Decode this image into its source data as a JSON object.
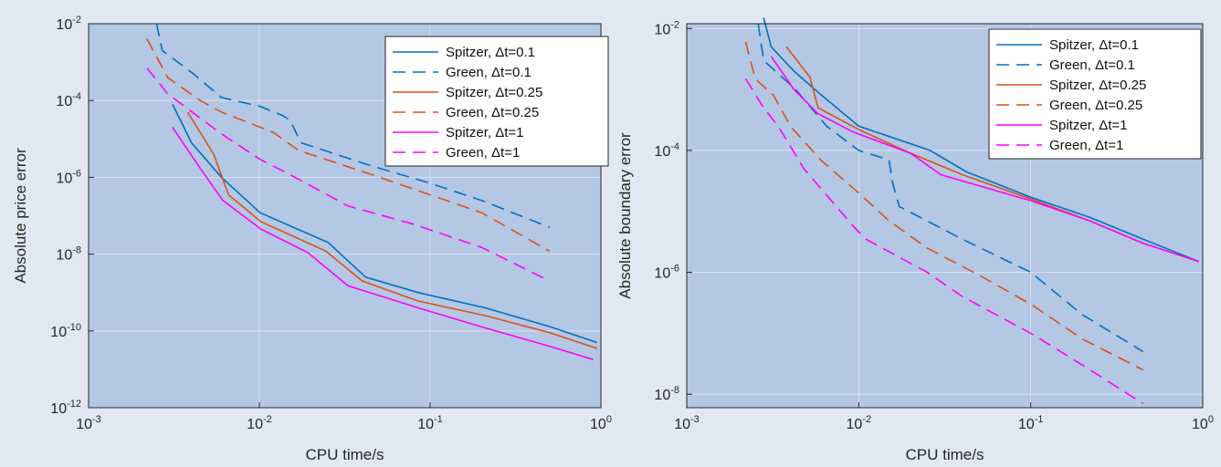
{
  "chart_data": [
    {
      "type": "line",
      "xlabel": "CPU time/s",
      "ylabel": "Absolute price error",
      "xscale": "log",
      "yscale": "log",
      "xlim": [
        0.001,
        1
      ],
      "ylim": [
        1e-12,
        0.01
      ],
      "xticks": [
        0.001,
        0.01,
        0.1,
        1
      ],
      "xticklabels": [
        [
          "10",
          "-3"
        ],
        [
          "10",
          "-2"
        ],
        [
          "10",
          "-1"
        ],
        [
          "10",
          "0"
        ]
      ],
      "yticks": [
        1e-12,
        1e-10,
        1e-08,
        1e-06,
        0.0001,
        0.01
      ],
      "yticklabels": [
        [
          "10",
          "-12"
        ],
        [
          "10",
          "-10"
        ],
        [
          "10",
          "-8"
        ],
        [
          "10",
          "-6"
        ],
        [
          "10",
          "-4"
        ],
        [
          "10",
          "-2"
        ]
      ],
      "grid": true,
      "legend_position": "top-right",
      "series": [
        {
          "name": "Spitzer, Δt=0.1",
          "color": "#0072bd",
          "dash": "solid",
          "x": [
            0.0031,
            0.004,
            0.006,
            0.0101,
            0.0253,
            0.042,
            0.085,
            0.21,
            0.5,
            0.95
          ],
          "y": [
            8e-05,
            8e-06,
            1e-06,
            1.2e-07,
            2e-08,
            2.5e-09,
            1e-09,
            4e-10,
            1.3e-10,
            5e-11
          ]
        },
        {
          "name": "Green, Δt=0.1",
          "color": "#0072bd",
          "dash": "dashed",
          "x": [
            0.0025,
            0.0027,
            0.0041,
            0.006,
            0.0101,
            0.0138,
            0.0152,
            0.0175,
            0.045,
            0.1,
            0.2,
            0.5
          ],
          "y": [
            0.01,
            0.002,
            0.0005,
            0.00012,
            7e-05,
            4e-05,
            3e-05,
            8e-06,
            2e-06,
            7e-07,
            2.5e-07,
            5e-08
          ]
        },
        {
          "name": "Spitzer, Δt=0.25",
          "color": "#d95319",
          "dash": "solid",
          "x": [
            0.0038,
            0.0054,
            0.0066,
            0.0102,
            0.0245,
            0.04,
            0.085,
            0.21,
            0.5,
            0.95
          ],
          "y": [
            5e-05,
            4e-06,
            3.5e-07,
            7e-08,
            1.2e-08,
            2e-09,
            6e-10,
            2.5e-10,
            9e-11,
            3.5e-11
          ]
        },
        {
          "name": "Green, Δt=0.25",
          "color": "#d95319",
          "dash": "dashed",
          "x": [
            0.0022,
            0.0029,
            0.0045,
            0.006,
            0.012,
            0.017,
            0.045,
            0.1,
            0.2,
            0.5
          ],
          "y": [
            0.004,
            0.0004,
            0.0001,
            5e-05,
            1.5e-05,
            5e-06,
            1.2e-06,
            3.5e-07,
            1.2e-07,
            1.2e-08
          ]
        },
        {
          "name": "Spitzer, Δt=1",
          "color": "#ff00ff",
          "dash": "solid",
          "x": [
            0.0031,
            0.0044,
            0.0061,
            0.0102,
            0.0192,
            0.033,
            0.085,
            0.21,
            0.5,
            0.9
          ],
          "y": [
            2e-05,
            2e-06,
            2.5e-07,
            4.5e-08,
            1.1e-08,
            1.5e-09,
            4e-10,
            1.2e-10,
            4e-11,
            1.8e-11
          ]
        },
        {
          "name": "Green, Δt=1",
          "color": "#ff00ff",
          "dash": "dashed",
          "x": [
            0.0022,
            0.0029,
            0.0045,
            0.0058,
            0.01,
            0.015,
            0.033,
            0.08,
            0.2,
            0.5
          ],
          "y": [
            0.0007,
            0.00015,
            3.5e-05,
            1.5e-05,
            3e-06,
            1.2e-06,
            1.8e-07,
            6e-08,
            1.5e-08,
            2e-09
          ]
        }
      ]
    },
    {
      "type": "line",
      "xlabel": "CPU time/s",
      "ylabel": "Absolute boundary error",
      "xscale": "log",
      "yscale": "log",
      "xlim": [
        0.001,
        1
      ],
      "ylim": [
        6e-09,
        0.012
      ],
      "xticks": [
        0.001,
        0.01,
        0.1,
        1
      ],
      "xticklabels": [
        [
          "10",
          "-3"
        ],
        [
          "10",
          "-2"
        ],
        [
          "10",
          "-1"
        ],
        [
          "10",
          "0"
        ]
      ],
      "yticks": [
        1e-08,
        1e-06,
        0.0001,
        0.01
      ],
      "yticklabels": [
        [
          "10",
          "-8"
        ],
        [
          "10",
          "-6"
        ],
        [
          "10",
          "-4"
        ],
        [
          "10",
          "-2"
        ]
      ],
      "grid": true,
      "legend_position": "top-right",
      "series": [
        {
          "name": "Spitzer, Δt=0.1",
          "color": "#0072bd",
          "dash": "solid",
          "x": [
            0.0028,
            0.0031,
            0.0042,
            0.0058,
            0.01,
            0.026,
            0.042,
            0.1,
            0.22,
            0.45,
            0.95
          ],
          "y": [
            0.015,
            0.005,
            0.002,
            0.0009,
            0.00025,
            0.0001,
            4.5e-05,
            1.7e-05,
            8e-06,
            3.5e-06,
            1.5e-06
          ]
        },
        {
          "name": "Green, Δt=0.1",
          "color": "#0072bd",
          "dash": "dashed",
          "x": [
            0.0026,
            0.0028,
            0.003,
            0.0043,
            0.0065,
            0.01,
            0.015,
            0.0157,
            0.0172,
            0.04,
            0.1,
            0.2,
            0.45
          ],
          "y": [
            0.012,
            0.003,
            0.0025,
            0.001,
            0.00025,
            0.0001,
            7e-05,
            3e-05,
            1.2e-05,
            3.5e-06,
            1e-06,
            2e-07,
            5e-08
          ]
        },
        {
          "name": "Spitzer, Δt=0.25",
          "color": "#d95319",
          "dash": "solid",
          "x": [
            0.0038,
            0.0052,
            0.0058,
            0.01,
            0.02,
            0.04,
            0.1,
            0.22,
            0.45,
            0.95
          ],
          "y": [
            0.005,
            0.0016,
            0.0005,
            0.00022,
            9e-05,
            4e-05,
            1.6e-05,
            7e-06,
            3e-06,
            1.5e-06
          ]
        },
        {
          "name": "Green, Δt=0.25",
          "color": "#d95319",
          "dash": "dashed",
          "x": [
            0.0022,
            0.0025,
            0.0032,
            0.004,
            0.006,
            0.01,
            0.015,
            0.025,
            0.05,
            0.1,
            0.2,
            0.45
          ],
          "y": [
            0.006,
            0.0015,
            0.0008,
            0.00025,
            7e-05,
            2e-05,
            7e-06,
            2.5e-06,
            9e-07,
            3e-07,
            8e-08,
            2.5e-08
          ]
        },
        {
          "name": "Spitzer, Δt=1",
          "color": "#ff00ff",
          "dash": "solid",
          "x": [
            0.0031,
            0.0042,
            0.0058,
            0.0093,
            0.02,
            0.03,
            0.1,
            0.22,
            0.45,
            0.95
          ],
          "y": [
            0.0035,
            0.001,
            0.0004,
            0.0002,
            9e-05,
            4e-05,
            1.5e-05,
            7e-06,
            3e-06,
            1.5e-06
          ]
        },
        {
          "name": "Green, Δt=1",
          "color": "#ff00ff",
          "dash": "dashed",
          "x": [
            0.0022,
            0.0028,
            0.0034,
            0.0048,
            0.0094,
            0.011,
            0.025,
            0.04,
            0.1,
            0.2,
            0.45
          ],
          "y": [
            0.0015,
            0.0005,
            0.00025,
            5e-05,
            5.5e-06,
            3.5e-06,
            1e-06,
            4e-07,
            1e-07,
            3e-08,
            7e-09
          ]
        }
      ]
    }
  ]
}
